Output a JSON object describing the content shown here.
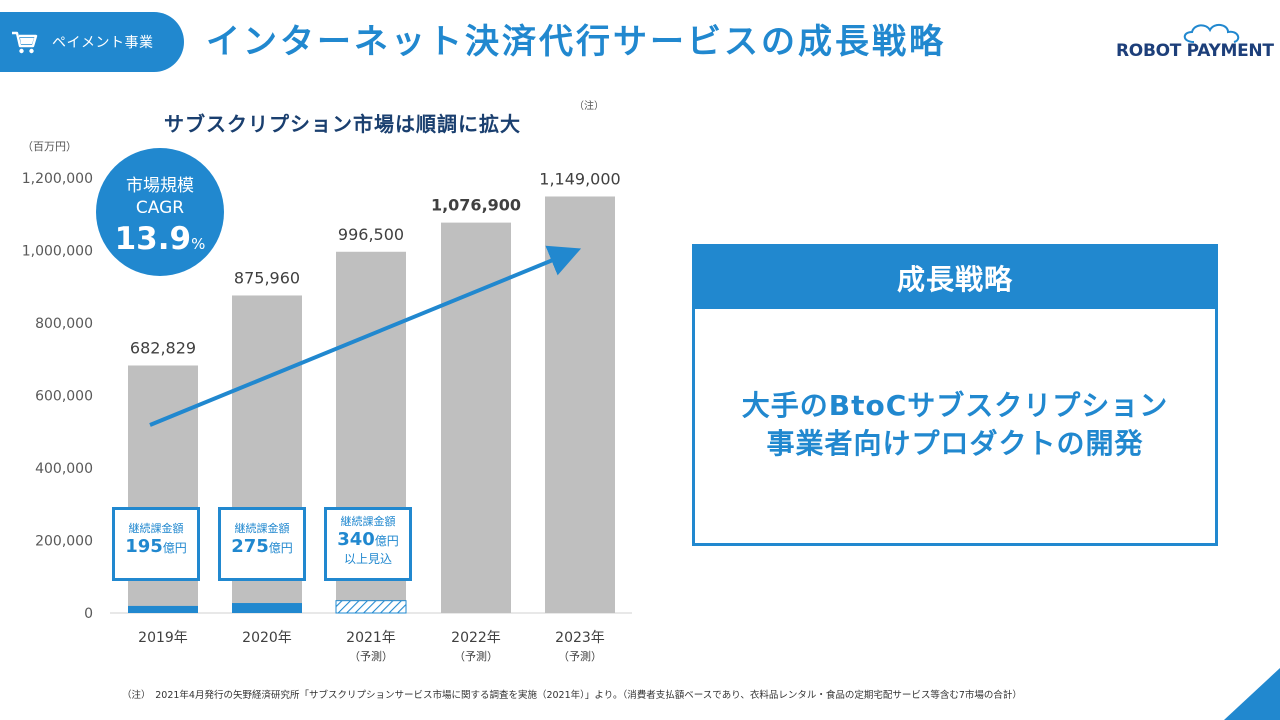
{
  "header": {
    "section_tab": "ペイメント事業",
    "title": "インターネット決済代行サービスの成長戦略",
    "logo_text": "ROBOT PAYMENT"
  },
  "colors": {
    "accent": "#2188cf",
    "bar": "#bfbfbf",
    "navy": "#1a3f6f"
  },
  "icons": [
    "cart-icon",
    "cloud-icon"
  ],
  "chart_data": {
    "type": "bar",
    "title": "サブスクリプション市場は順調に拡大",
    "title_note": "（注）",
    "unit_label": "（百万円）",
    "categories": [
      "2019年",
      "2020年",
      "2021年",
      "2022年",
      "2023年"
    ],
    "category_sublabels": [
      "",
      "",
      "（予測）",
      "（予測）",
      "（予測）"
    ],
    "values": [
      682829,
      875960,
      996500,
      1076900,
      1149000
    ],
    "value_labels": [
      "682,829",
      "875,960",
      "996,500",
      "1,076,900",
      "1,149,000"
    ],
    "ylim": [
      0,
      1200000
    ],
    "yticks": [
      0,
      200000,
      400000,
      600000,
      800000,
      1000000,
      1200000
    ],
    "ytick_labels": [
      "0",
      "200,000",
      "400,000",
      "600,000",
      "800,000",
      "1,000,000",
      "1,200,000"
    ],
    "grid": false,
    "trend_arrow": true,
    "cagr": {
      "line1": "市場規模",
      "line2": "CAGR",
      "value": "13.9",
      "unit": "%"
    },
    "recurring_revenue": {
      "values_oku_yen": [
        195,
        275,
        340
      ],
      "overlay_bars_style": [
        "solid",
        "solid",
        "hatched"
      ],
      "boxes": [
        {
          "label": "継続課金額",
          "value": "195",
          "unit": "億円",
          "note": ""
        },
        {
          "label": "継続課金額",
          "value": "275",
          "unit": "億円",
          "note": ""
        },
        {
          "label": "継続課金額",
          "value": "340",
          "unit": "億円",
          "note": "以上見込"
        }
      ]
    }
  },
  "strategy": {
    "heading": "成長戦略",
    "line1": "大手のBtoCサブスクリプション",
    "line2": "事業者向けプロダクトの開発"
  },
  "footnote": "（注）　2021年4月発行の矢野経済研究所「サブスクリプションサービス市場に関する調査を実施（2021年）」より。（消費者支払額ベースであり、衣料品レンタル・食品の定期宅配サービス等含む7市場の合計）"
}
